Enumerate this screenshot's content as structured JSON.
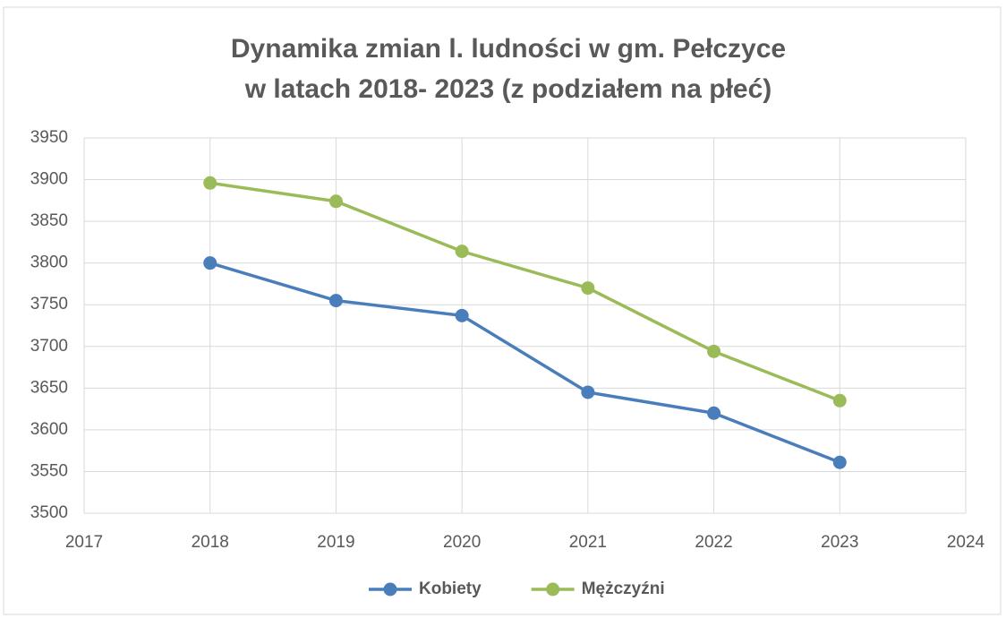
{
  "chart_data": {
    "type": "line",
    "title": [
      "Dynamika zmian l. ludności w gm. Pełczyce",
      "w latach 2018- 2023 (z podziałem na płeć)"
    ],
    "x": [
      2018,
      2019,
      2020,
      2021,
      2022,
      2023
    ],
    "series": [
      {
        "name": "Kobiety",
        "color": "#4a7ebb",
        "values": [
          3800,
          3755,
          3737,
          3645,
          3620,
          3561
        ]
      },
      {
        "name": "Mężczyźni",
        "color": "#9bbb59",
        "values": [
          3896,
          3874,
          3814,
          3770,
          3694,
          3635
        ]
      }
    ],
    "xlim": [
      2017,
      2024
    ],
    "xticks": [
      2017,
      2018,
      2019,
      2020,
      2021,
      2022,
      2023,
      2024
    ],
    "ylim": [
      3500,
      3950
    ],
    "yticks": [
      3500,
      3550,
      3600,
      3650,
      3700,
      3750,
      3800,
      3850,
      3900,
      3950
    ],
    "grid": true,
    "legend": "bottom"
  }
}
